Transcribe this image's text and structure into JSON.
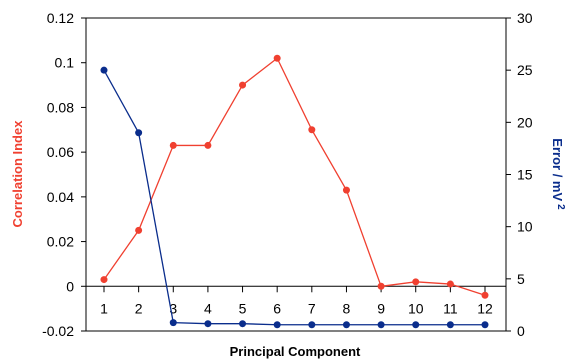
{
  "chart_data": {
    "type": "line",
    "title": "",
    "xlabel": "Principal Component",
    "ylabel_left": "Correlation Index",
    "ylabel_right": "Error / mV",
    "ylabel_right_sup": "2",
    "categories": [
      "1",
      "2",
      "3",
      "4",
      "5",
      "6",
      "7",
      "8",
      "9",
      "10",
      "11",
      "12"
    ],
    "y_left_range": [
      -0.02,
      0.12
    ],
    "y_left_ticks": [
      "-0.02",
      "0",
      "0.02",
      "0.04",
      "0.06",
      "0.08",
      "0.1",
      "0.12"
    ],
    "y_right_range": [
      0,
      30
    ],
    "y_right_ticks": [
      "0",
      "5",
      "10",
      "15",
      "20",
      "25",
      "30"
    ],
    "grid": false,
    "legend": "none",
    "series": [
      {
        "axis": "left",
        "color": "#f04030",
        "marker": "circle",
        "values": [
          0.003,
          0.025,
          0.063,
          0.063,
          0.09,
          0.102,
          0.07,
          0.043,
          0.0,
          0.002,
          0.001,
          -0.004
        ]
      },
      {
        "axis": "right",
        "color": "#0a2d8c",
        "marker": "circle",
        "values": [
          25.0,
          19.0,
          0.8,
          0.7,
          0.7,
          0.6,
          0.6,
          0.6,
          0.6,
          0.6,
          0.6,
          0.6
        ]
      }
    ],
    "colors": {
      "left_title": "#f04030",
      "right_title": "#0a2d8c"
    }
  }
}
